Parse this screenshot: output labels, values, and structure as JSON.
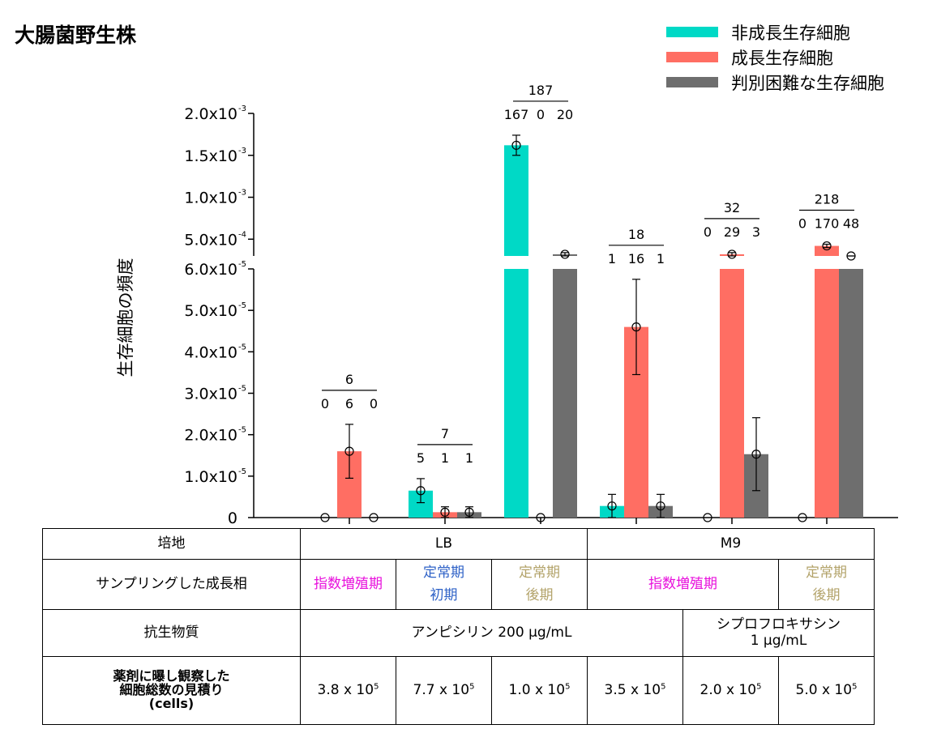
{
  "title": "大腸菌野生株",
  "colors": {
    "nongrowing": "#00d9c6",
    "growing": "#ff6e63",
    "ambiguous": "#6e6e6e"
  },
  "chart_data": {
    "type": "bar",
    "ylabel": "生存細胞の頻度",
    "y_axis_break": true,
    "ylim_lower": [
      0,
      6e-05
    ],
    "ylim_upper": [
      0.0003,
      0.002
    ],
    "yticks_lower": [
      "0",
      "1.0x10",
      "2.0x10",
      "3.0x10",
      "4.0x10",
      "5.0x10",
      "6.0x10"
    ],
    "yticks_lower_exp": [
      "",
      "-5",
      "-5",
      "-5",
      "-5",
      "-5",
      "-5"
    ],
    "yticks_upper": [
      "5.0x10",
      "1.0x10",
      "1.5x10",
      "2.0x10"
    ],
    "yticks_upper_exp": [
      "-4",
      "-3",
      "-3",
      "-3"
    ],
    "legend_position": "top-right",
    "series": [
      {
        "name": "非成長生存細胞",
        "values": [
          0,
          6.5e-06,
          0.00162,
          2.8e-06,
          0,
          0
        ],
        "errors": [
          0,
          2.9e-06,
          0.00012,
          2.8e-06,
          0,
          0
        ]
      },
      {
        "name": "成長生存細胞",
        "values": [
          1.6e-05,
          1.3e-06,
          0,
          4.6e-05,
          0.00032,
          0.00042
        ],
        "errors": [
          6.5e-06,
          1.3e-06,
          0,
          1.15e-05,
          2e-05,
          2e-05
        ]
      },
      {
        "name": "判別困難な生存細胞",
        "values": [
          0,
          1.3e-06,
          0.00032,
          2.8e-06,
          1.53e-05,
          0.00028
        ],
        "errors": [
          0,
          1.3e-06,
          2e-05,
          2.8e-06,
          8.8e-06,
          1e-05
        ]
      }
    ],
    "groups": [
      {
        "total": "6",
        "counts": [
          "0",
          "6",
          "0"
        ]
      },
      {
        "total": "7",
        "counts": [
          "5",
          "1",
          "1"
        ]
      },
      {
        "total": "187",
        "counts": [
          "167",
          "0",
          "20"
        ]
      },
      {
        "total": "18",
        "counts": [
          "1",
          "16",
          "1"
        ]
      },
      {
        "total": "32",
        "counts": [
          "0",
          "29",
          "3"
        ]
      },
      {
        "total": "218",
        "counts": [
          "0",
          "170",
          "48"
        ]
      }
    ]
  },
  "table": {
    "medium_label": "培地",
    "medium_lb": "LB",
    "medium_m9": "M9",
    "phase_label": "サンプリングした成長相",
    "phases": [
      {
        "line1": "指数増殖期",
        "line2": ""
      },
      {
        "line1": "定常期",
        "line2": "初期"
      },
      {
        "line1": "定常期",
        "line2": "後期"
      },
      {
        "line1": "指数増殖期",
        "line2": ""
      },
      {
        "line1": "定常期",
        "line2": "後期"
      }
    ],
    "antibiotic_label": "抗生物質",
    "ampicillin": "アンピシリン 200 μg/mL",
    "cipro_line1": "シプロフロキサシン",
    "cipro_line2": "1 μg/mL",
    "estimate_line1": "薬剤に曝し観察した",
    "estimate_line2": "細胞総数の見積り",
    "estimate_line3": "(cells)",
    "estimates": [
      {
        "mantissa": "3.8 x 10",
        "exp": "5"
      },
      {
        "mantissa": "7.7 x 10",
        "exp": "5"
      },
      {
        "mantissa": "1.0 x 10",
        "exp": "5"
      },
      {
        "mantissa": "3.5 x 10",
        "exp": "5"
      },
      {
        "mantissa": "2.0 x 10",
        "exp": "5"
      },
      {
        "mantissa": "5.0 x 10",
        "exp": "5"
      }
    ]
  }
}
